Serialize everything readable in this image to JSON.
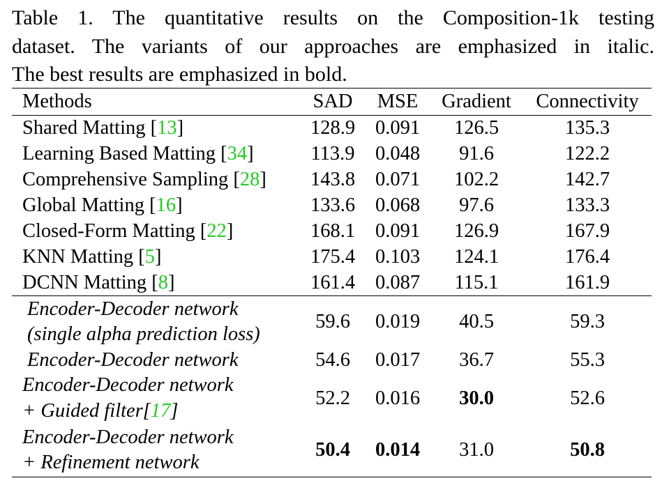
{
  "caption": {
    "line1": "Table 1. The quantitative results on the Composition-1k testing",
    "line2": "dataset. The variants of our approaches are emphasized in italic.",
    "line3": "The best results are emphasized in bold."
  },
  "header": {
    "methods": "Methods",
    "sad": "SAD",
    "mse": "MSE",
    "gradient": "Gradient",
    "connectivity": "Connectivity"
  },
  "baselines": [
    {
      "name": "Shared Matting ",
      "open": "[",
      "ref": "13",
      "close": "]",
      "sad": "128.9",
      "mse": "0.091",
      "gradient": "126.5",
      "connectivity": "135.3"
    },
    {
      "name": "Learning Based Matting ",
      "open": "[",
      "ref": "34",
      "close": "]",
      "sad": "113.9",
      "mse": "0.048",
      "gradient": "91.6",
      "connectivity": "122.2"
    },
    {
      "name": "Comprehensive Sampling ",
      "open": "[",
      "ref": "28",
      "close": "]",
      "sad": "143.8",
      "mse": "0.071",
      "gradient": "102.2",
      "connectivity": "142.7"
    },
    {
      "name": "Global Matting ",
      "open": "[",
      "ref": "16",
      "close": "]",
      "sad": "133.6",
      "mse": "0.068",
      "gradient": "97.6",
      "connectivity": "133.3"
    },
    {
      "name": "Closed-Form Matting ",
      "open": "[",
      "ref": "22",
      "close": "]",
      "sad": "168.1",
      "mse": "0.091",
      "gradient": "126.9",
      "connectivity": "167.9"
    },
    {
      "name": "KNN Matting ",
      "open": "[",
      "ref": "5",
      "close": "]",
      "sad": "175.4",
      "mse": "0.103",
      "gradient": "124.1",
      "connectivity": "176.4"
    },
    {
      "name": "DCNN Matting ",
      "open": "[",
      "ref": "8",
      "close": "]",
      "sad": "161.4",
      "mse": "0.087",
      "gradient": "115.1",
      "connectivity": "161.9"
    }
  ],
  "variants": [
    {
      "line1": "Encoder-Decoder network",
      "line2": "(single alpha prediction loss)",
      "sad": "59.6",
      "mse": "0.019",
      "gradient": "40.5",
      "connectivity": "59.3"
    },
    {
      "line1": "Encoder-Decoder network",
      "sad": "54.6",
      "mse": "0.017",
      "gradient": "36.7",
      "connectivity": "55.3"
    },
    {
      "line1": "Encoder-Decoder network",
      "line2_prefix": "+ Guided filter",
      "open": "[",
      "ref": "17",
      "close": "]",
      "sad": "52.2",
      "mse": "0.016",
      "gradient": "30.0",
      "connectivity": "52.6"
    },
    {
      "line1": "Encoder-Decoder network",
      "line2": "+ Refinement network",
      "sad": "50.4",
      "mse": "0.014",
      "gradient": "31.0",
      "connectivity": "50.8"
    }
  ]
}
